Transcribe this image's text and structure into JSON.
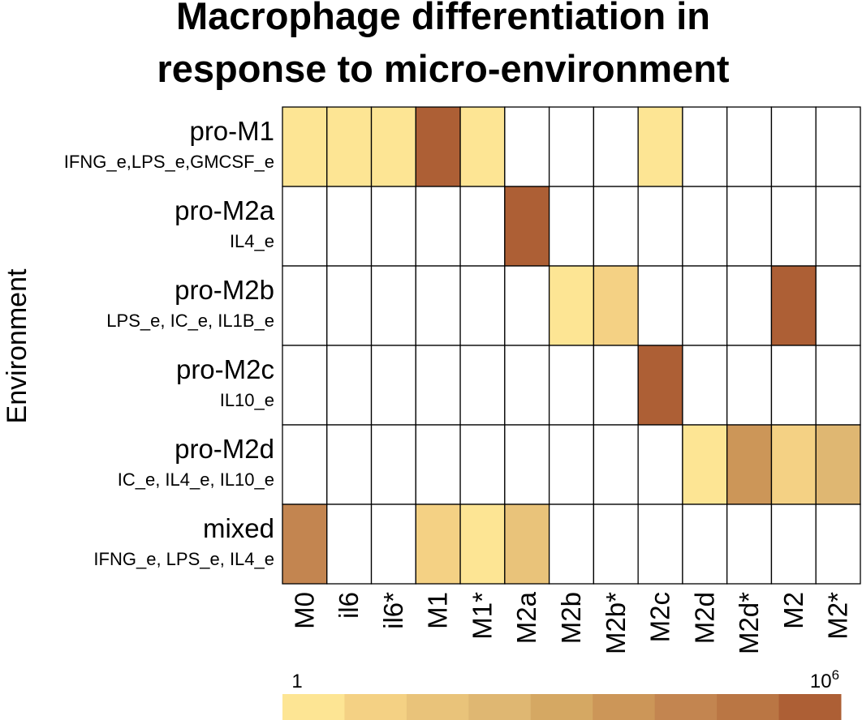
{
  "chart_data": {
    "type": "heatmap",
    "title_lines": [
      "Macrophage differentiation in",
      "response to micro-environment"
    ],
    "ylabel": "Environment",
    "rows": [
      {
        "name": "pro-M1",
        "inputs": "IFNG_e,LPS_e,GMCSF_e"
      },
      {
        "name": "pro-M2a",
        "inputs": "IL4_e"
      },
      {
        "name": "pro-M2b",
        "inputs": "LPS_e, IC_e, IL1B_e"
      },
      {
        "name": "pro-M2c",
        "inputs": "IL10_e"
      },
      {
        "name": "pro-M2d",
        "inputs": "IC_e, IL4_e, IL10_e"
      },
      {
        "name": "mixed",
        "inputs": "IFNG_e, LPS_e, IL4_e"
      }
    ],
    "columns": [
      "M0",
      "il6",
      "il6*",
      "M1",
      "M1*",
      "M2a",
      "M2b",
      "M2b*",
      "M2c",
      "M2d",
      "M2d*",
      "M2",
      "M2*"
    ],
    "color_scale": {
      "type": "log",
      "min_label": "1",
      "max_label": "10",
      "max_label_exp": "6",
      "min": 1,
      "max": 1000000,
      "colors": [
        "#fde594",
        "#f4d184",
        "#e9c37a",
        "#dfb772",
        "#d5a863",
        "#cc9658",
        "#c38550",
        "#ba7644",
        "#ad5f35"
      ],
      "empty_color": "#ffffff"
    },
    "values": [
      [
        0.2,
        0.2,
        0.2,
        6,
        0.2,
        null,
        null,
        null,
        0.2,
        null,
        null,
        null,
        null
      ],
      [
        null,
        null,
        null,
        null,
        null,
        6,
        null,
        null,
        null,
        null,
        null,
        null,
        null
      ],
      [
        null,
        null,
        null,
        null,
        null,
        null,
        0.2,
        1,
        null,
        null,
        null,
        6,
        null
      ],
      [
        null,
        null,
        null,
        null,
        null,
        null,
        null,
        null,
        6,
        null,
        null,
        null,
        null
      ],
      [
        null,
        null,
        null,
        null,
        null,
        null,
        null,
        null,
        null,
        0.2,
        3.6,
        1,
        2.4
      ],
      [
        4.2,
        null,
        null,
        1,
        0.3,
        1.5,
        null,
        null,
        null,
        null,
        null,
        null,
        null
      ]
    ]
  }
}
